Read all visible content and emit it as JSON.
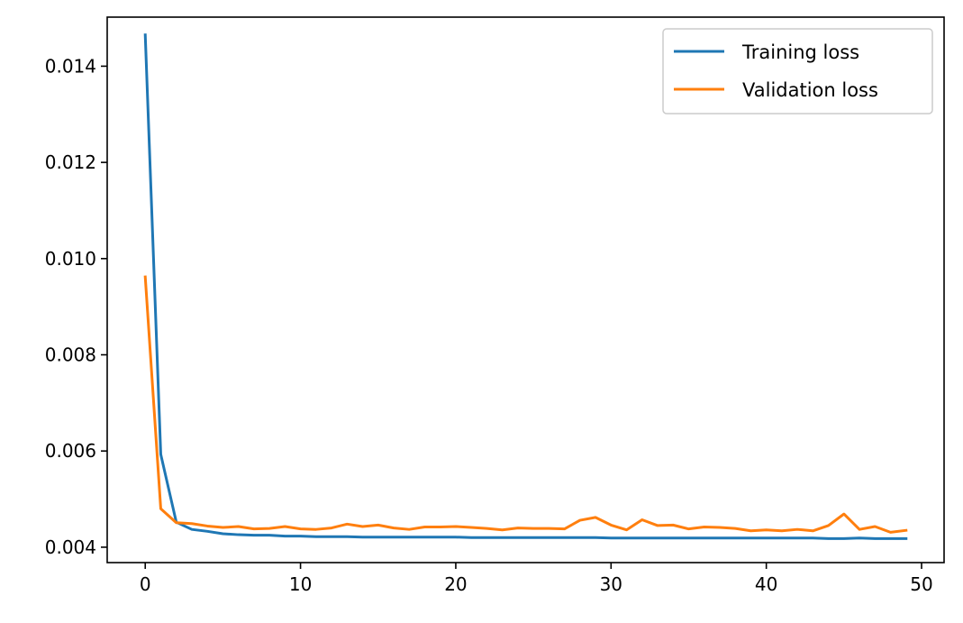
{
  "chart_data": {
    "type": "line",
    "title": "",
    "xlabel": "",
    "ylabel": "",
    "xlim": [
      -2.45,
      51.45
    ],
    "ylim": [
      0.00368,
      0.01502
    ],
    "x_ticks": [
      0,
      10,
      20,
      30,
      40,
      50
    ],
    "x_tick_labels": [
      "0",
      "10",
      "20",
      "30",
      "40",
      "50"
    ],
    "y_ticks": [
      0.004,
      0.006,
      0.008,
      0.01,
      0.012,
      0.014
    ],
    "y_tick_labels": [
      "0.004",
      "0.006",
      "0.008",
      "0.010",
      "0.012",
      "0.014"
    ],
    "grid": false,
    "legend_position": "top-right",
    "x": [
      0,
      1,
      2,
      3,
      4,
      5,
      6,
      7,
      8,
      9,
      10,
      11,
      12,
      13,
      14,
      15,
      16,
      17,
      18,
      19,
      20,
      21,
      22,
      23,
      24,
      25,
      26,
      27,
      28,
      29,
      30,
      31,
      32,
      33,
      34,
      35,
      36,
      37,
      38,
      39,
      40,
      41,
      42,
      43,
      44,
      45,
      46,
      47,
      48,
      49
    ],
    "series": [
      {
        "name": "Training loss",
        "color": "#1f77b4",
        "values": [
          0.01465,
          0.00593,
          0.00452,
          0.00437,
          0.00433,
          0.00428,
          0.00426,
          0.00425,
          0.00425,
          0.00423,
          0.00423,
          0.00422,
          0.00422,
          0.00422,
          0.00421,
          0.00421,
          0.00421,
          0.00421,
          0.00421,
          0.00421,
          0.00421,
          0.0042,
          0.0042,
          0.0042,
          0.0042,
          0.0042,
          0.0042,
          0.0042,
          0.0042,
          0.0042,
          0.00419,
          0.00419,
          0.00419,
          0.00419,
          0.00419,
          0.00419,
          0.00419,
          0.00419,
          0.00419,
          0.00419,
          0.00419,
          0.00419,
          0.00419,
          0.00419,
          0.00418,
          0.00418,
          0.00419,
          0.00418,
          0.00418,
          0.00418
        ]
      },
      {
        "name": "Validation loss",
        "color": "#ff7f0e",
        "values": [
          0.00962,
          0.0048,
          0.00451,
          0.00449,
          0.00444,
          0.00441,
          0.00443,
          0.00438,
          0.00439,
          0.00443,
          0.00438,
          0.00437,
          0.0044,
          0.00448,
          0.00443,
          0.00446,
          0.0044,
          0.00437,
          0.00442,
          0.00442,
          0.00443,
          0.00441,
          0.00439,
          0.00436,
          0.0044,
          0.00439,
          0.00439,
          0.00438,
          0.00456,
          0.00462,
          0.00446,
          0.00436,
          0.00457,
          0.00445,
          0.00446,
          0.00438,
          0.00442,
          0.00441,
          0.00439,
          0.00434,
          0.00436,
          0.00434,
          0.00437,
          0.00434,
          0.00445,
          0.00469,
          0.00437,
          0.00443,
          0.00431,
          0.00435
        ]
      }
    ]
  }
}
